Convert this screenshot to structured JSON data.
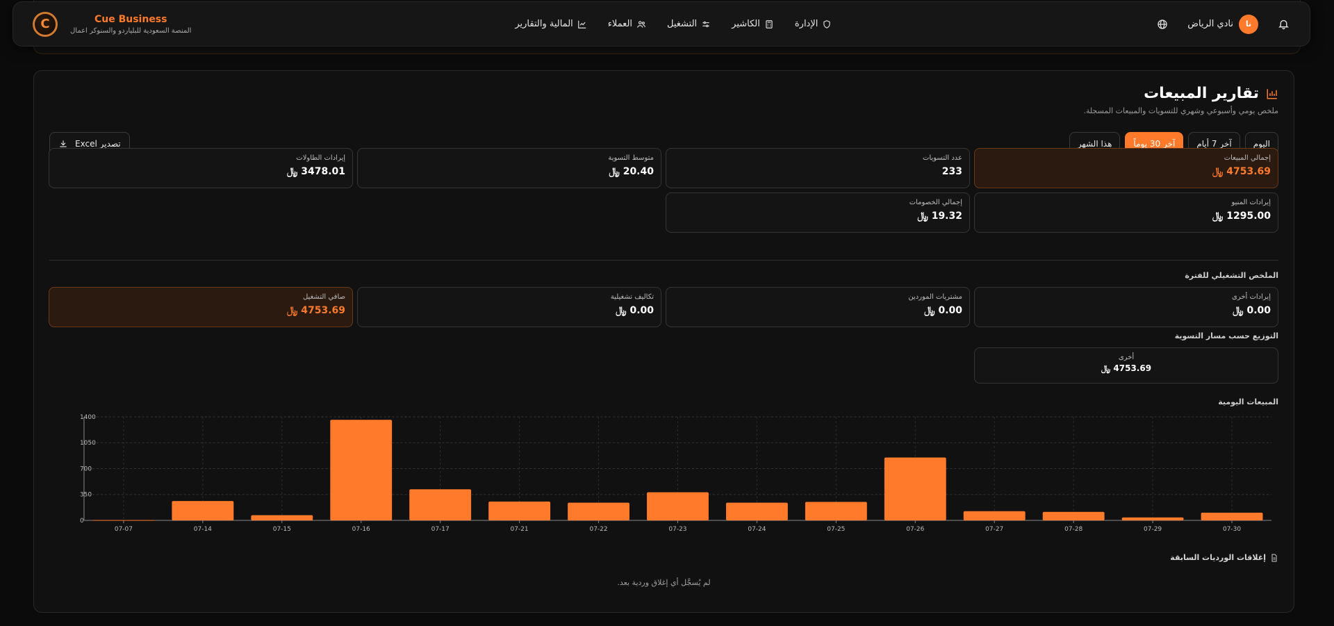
{
  "brand": {
    "title": "Cue Business",
    "subtitle": "المنصة السعودية للبلياردو والسنوكر اعمال"
  },
  "nav": [
    {
      "label": "الإدارة",
      "icon": "shield-icon"
    },
    {
      "label": "الكاشير",
      "icon": "calculator-icon"
    },
    {
      "label": "التشغيل",
      "icon": "sliders-icon"
    },
    {
      "label": "العملاء",
      "icon": "users-icon"
    },
    {
      "label": "المالية والتقارير",
      "icon": "chart-line-icon"
    }
  ],
  "user": {
    "name": "نادي الرياض",
    "initials": "نا"
  },
  "page": {
    "title": "تقارير المبيعات",
    "subtitle": "ملخص يومي وأسبوعي وشهري للتسويات والمبيعات المسجلة."
  },
  "filters": {
    "today": "اليوم",
    "last7": "آخر 7 أيام",
    "last30": "آخر 30 يوماً",
    "thisMonth": "هذا الشهر"
  },
  "export_label": "تصدير Excel",
  "currency": "﷼",
  "stats": {
    "total_sales": {
      "label": "إجمالي المبيعات",
      "value": "4753.69"
    },
    "settlements_count": {
      "label": "عدد التسويات",
      "value": "233"
    },
    "avg_settlement": {
      "label": "متوسط التسوية",
      "value": "20.40"
    },
    "table_revenue": {
      "label": "إيرادات الطاولات",
      "value": "3478.01"
    },
    "menu_revenue": {
      "label": "إيرادات المنيو",
      "value": "1295.00"
    },
    "total_discounts": {
      "label": "إجمالي الخصومات",
      "value": "19.32"
    }
  },
  "operating_summary": {
    "title": "الملخص التشغيلي للفترة",
    "other_revenue": {
      "label": "إيرادات أخرى",
      "value": "0.00"
    },
    "supplier_purchases": {
      "label": "مشتريات الموردين",
      "value": "0.00"
    },
    "operating_costs": {
      "label": "تكاليف تشغيلية",
      "value": "0.00"
    },
    "net_operating": {
      "label": "صافي التشغيل",
      "value": "4753.69"
    }
  },
  "distribution": {
    "title": "التوزيع حسب مسار التسوية",
    "label": "أخرى",
    "value": "4753.69"
  },
  "chart_title": "المبيعات اليومية",
  "chart_data": {
    "type": "bar",
    "categories": [
      "07-07",
      "07-14",
      "07-15",
      "07-16",
      "07-17",
      "07-21",
      "07-22",
      "07-23",
      "07-24",
      "07-25",
      "07-26",
      "07-27",
      "07-28",
      "07-29",
      "07-30"
    ],
    "values": [
      5,
      262,
      70,
      1360,
      420,
      255,
      240,
      380,
      240,
      250,
      850,
      125,
      115,
      40,
      105
    ],
    "yticks": [
      0,
      350,
      700,
      1050,
      1400
    ],
    "ylim": [
      0,
      1400
    ],
    "color": "#ff7a2a",
    "grid": true
  },
  "closings": {
    "title": "إغلاقات الورديات السابقة",
    "empty": "لم يُسجَّل أي إغلاق وردية بعد."
  }
}
